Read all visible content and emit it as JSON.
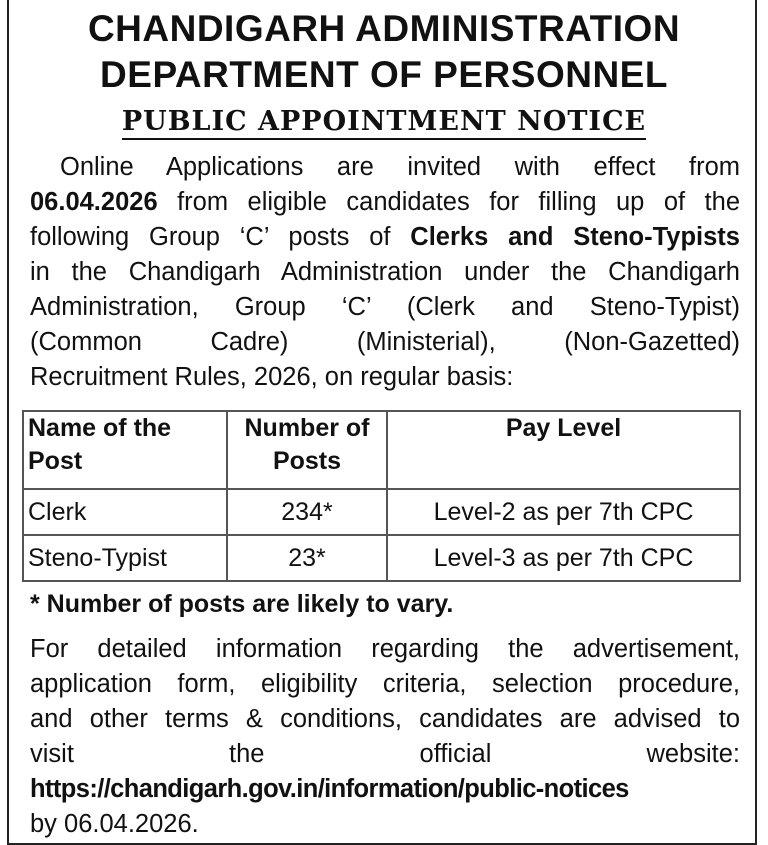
{
  "header": {
    "line1": "CHANDIGARH ADMINISTRATION",
    "line2": "DEPARTMENT OF PERSONNEL",
    "notice_title": "PUBLIC APPOINTMENT NOTICE"
  },
  "intro": {
    "l1": "Online Applications are invited with effect from",
    "l2_bold": "06.04.2026",
    "l2": " from eligible candidates for filling up of the",
    "l3": "following Group ‘C’ posts of ",
    "l3_bold": "Clerks and Steno-Typists",
    "l4": "in the Chandigarh Administration under the Chandigarh",
    "l5": "Administration, Group ‘C’ (Clerk and Steno-Typist)",
    "l6": "(Common Cadre) (Ministerial), (Non-Gazetted)",
    "l7": "Recruitment Rules, 2026, on regular basis:"
  },
  "table": {
    "headers": [
      "Name of the Post",
      "Number of Posts",
      "Pay Level"
    ],
    "rows": [
      {
        "post": "Clerk",
        "count": "234*",
        "pay": "Level-2 as per 7th CPC"
      },
      {
        "post": "Steno-Typist",
        "count": "23*",
        "pay": "Level-3 as per 7th CPC"
      }
    ]
  },
  "footnote": "* Number of posts are likely to vary.",
  "details": {
    "l1": "For detailed information regarding the advertisement,",
    "l2": "application form, eligibility criteria, selection procedure,",
    "l3": "and other terms & conditions, candidates are advised to",
    "l4": "visit the official website:",
    "url": "https://chandigarh.gov.in/information/public-notices",
    "l6": "by 06.04.2026."
  }
}
